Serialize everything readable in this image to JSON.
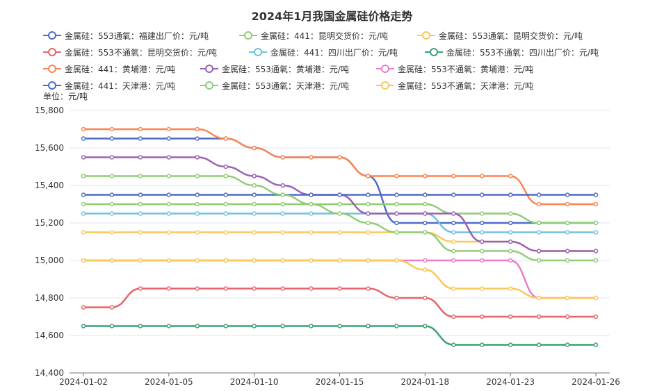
{
  "chart_data": {
    "type": "line",
    "title": "2024年1月我国金属硅价格走势",
    "ylabel": "单位：元/吨",
    "ylim": [
      14400,
      15800
    ],
    "yticks": [
      14400,
      14600,
      14800,
      15000,
      15200,
      15400,
      15600,
      15800
    ],
    "grid": true,
    "legend_position": "top",
    "x": [
      "2024-01-02",
      "2024-01-03",
      "2024-01-04",
      "2024-01-05",
      "2024-01-08",
      "2024-01-09",
      "2024-01-10",
      "2024-01-11",
      "2024-01-12",
      "2024-01-15",
      "2024-01-16",
      "2024-01-17",
      "2024-01-18",
      "2024-01-19",
      "2024-01-22",
      "2024-01-23",
      "2024-01-24",
      "2024-01-25",
      "2024-01-26"
    ],
    "xtick_labels": [
      "2024-01-02",
      "2024-01-05",
      "2024-01-10",
      "2024-01-15",
      "2024-01-18",
      "2024-01-23",
      "2024-01-26"
    ],
    "series": [
      {
        "name": "金属硅：553通氧：福建出厂价：元/吨",
        "color": "#4e6bc8",
        "values": [
          15650,
          15650,
          15650,
          15650,
          15650,
          15650,
          15600,
          15550,
          15550,
          15550,
          15450,
          15200,
          15200,
          15200,
          15200,
          15200,
          15200,
          15200,
          15200
        ]
      },
      {
        "name": "金属硅：441：昆明交货价：元/吨",
        "color": "#91cc75",
        "values": [
          15300,
          15300,
          15300,
          15300,
          15300,
          15300,
          15300,
          15300,
          15300,
          15300,
          15300,
          15300,
          15300,
          15250,
          15250,
          15250,
          15200,
          15200,
          15200
        ]
      },
      {
        "name": "金属硅：553通氧：昆明交货价：元/吨",
        "color": "#fac858",
        "values": [
          15150,
          15150,
          15150,
          15150,
          15150,
          15150,
          15150,
          15150,
          15150,
          15150,
          15150,
          15150,
          15150,
          15100,
          15100,
          15100,
          15050,
          15050,
          15050
        ]
      },
      {
        "name": "金属硅：553不通氧：昆明交货价：元/吨",
        "color": "#e8636b",
        "values": [
          14750,
          14750,
          14850,
          14850,
          14850,
          14850,
          14850,
          14850,
          14850,
          14850,
          14850,
          14800,
          14800,
          14700,
          14700,
          14700,
          14700,
          14700,
          14700
        ]
      },
      {
        "name": "金属硅：441：四川出厂价：元/吨",
        "color": "#73c0de",
        "values": [
          15250,
          15250,
          15250,
          15250,
          15250,
          15250,
          15250,
          15250,
          15250,
          15250,
          15250,
          15250,
          15250,
          15150,
          15150,
          15150,
          15150,
          15150,
          15150
        ]
      },
      {
        "name": "金属硅：553不通氧：四川出厂价：元/吨",
        "color": "#3ba272",
        "values": [
          14650,
          14650,
          14650,
          14650,
          14650,
          14650,
          14650,
          14650,
          14650,
          14650,
          14650,
          14650,
          14650,
          14550,
          14550,
          14550,
          14550,
          14550,
          14550
        ]
      },
      {
        "name": "金属硅：441：黄埔港：元/吨",
        "color": "#fc8452",
        "values": [
          15700,
          15700,
          15700,
          15700,
          15700,
          15650,
          15600,
          15550,
          15550,
          15550,
          15450,
          15450,
          15450,
          15450,
          15450,
          15450,
          15300,
          15300,
          15300
        ]
      },
      {
        "name": "金属硅：553通氧：黄埔港：元/吨",
        "color": "#9a60b4",
        "values": [
          15550,
          15550,
          15550,
          15550,
          15550,
          15500,
          15450,
          15400,
          15350,
          15350,
          15250,
          15250,
          15250,
          15250,
          15100,
          15100,
          15050,
          15050,
          15050
        ]
      },
      {
        "name": "金属硅：553不通氧：黄埔港：元/吨",
        "color": "#ea7ccc",
        "values": [
          15000,
          15000,
          15000,
          15000,
          15000,
          15000,
          15000,
          15000,
          15000,
          15000,
          15000,
          15000,
          15000,
          15000,
          15000,
          15000,
          14800,
          14800,
          14800
        ]
      },
      {
        "name": "金属硅：441：天津港：元/吨",
        "color": "#4e6bc8",
        "values": [
          15350,
          15350,
          15350,
          15350,
          15350,
          15350,
          15350,
          15350,
          15350,
          15350,
          15350,
          15350,
          15350,
          15350,
          15350,
          15350,
          15350,
          15350,
          15350
        ]
      },
      {
        "name": "金属硅：553通氧：天津港：元/吨",
        "color": "#91cc75",
        "values": [
          15450,
          15450,
          15450,
          15450,
          15450,
          15450,
          15400,
          15350,
          15300,
          15250,
          15200,
          15150,
          15150,
          15050,
          15050,
          15050,
          15000,
          15000,
          15000
        ]
      },
      {
        "name": "金属硅：553不通氧：天津港：元/吨",
        "color": "#fac858",
        "values": [
          15000,
          15000,
          15000,
          15000,
          15000,
          15000,
          15000,
          15000,
          15000,
          15000,
          15000,
          15000,
          14950,
          14850,
          14850,
          14850,
          14800,
          14800,
          14800
        ]
      }
    ]
  }
}
